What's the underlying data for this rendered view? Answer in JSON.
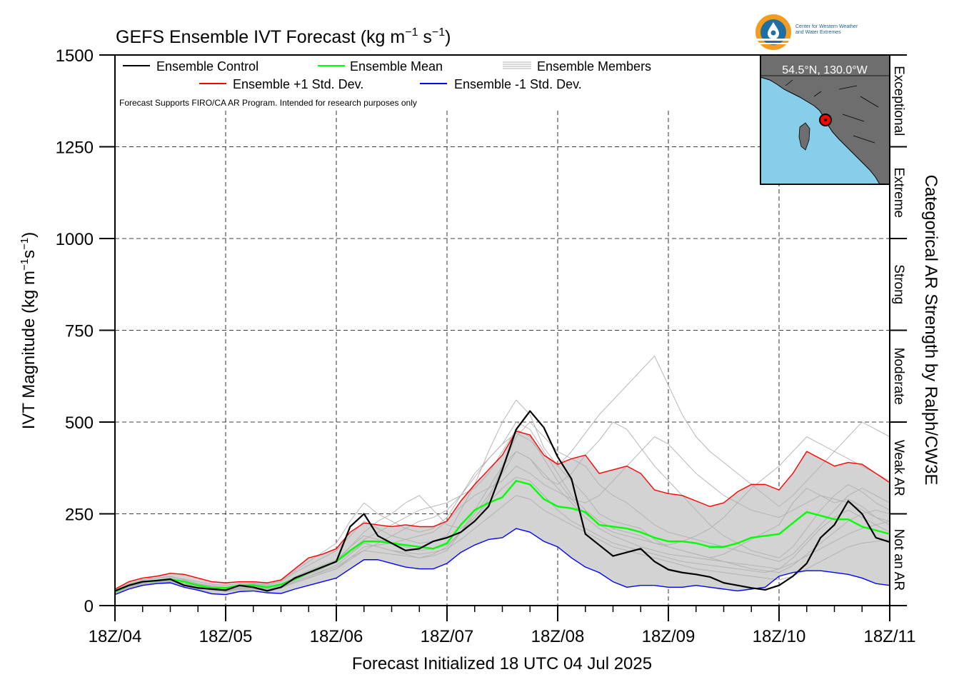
{
  "header": {
    "title": "GEFS Ensemble IVT Forecast (kg m",
    "title_sup1": "−1",
    "title_mid": " s",
    "title_sup2": "−1",
    "title_end": ")"
  },
  "logo": {
    "line1": "Center for Western Weather",
    "line2": "and Water Extremes",
    "colors": {
      "sun": "#f39c1f",
      "water": "#1f6fa5"
    }
  },
  "inset_map": {
    "location_label": "54.5°N, 130.0°W",
    "colors": {
      "ocean": "#87ceeb",
      "land": "#6e6e6e",
      "marker": "#ff0000"
    }
  },
  "disclaimer": "Forecast Supports FIRO/CA AR Program. Intended for research purposes only",
  "right_axis": {
    "title": "Categorical AR Strength by Ralph/CW3E",
    "categories": [
      {
        "label": "Not an AR",
        "range": [
          0,
          250
        ]
      },
      {
        "label": "Weak AR",
        "range": [
          250,
          500
        ]
      },
      {
        "label": "Moderate",
        "range": [
          500,
          750
        ]
      },
      {
        "label": "Strong",
        "range": [
          750,
          1000
        ]
      },
      {
        "label": "Extreme",
        "range": [
          1000,
          1250
        ]
      },
      {
        "label": "Exceptional",
        "range": [
          1250,
          1500
        ]
      }
    ]
  },
  "chart_data": {
    "type": "line",
    "title": "GEFS Ensemble IVT Forecast (kg m−1 s−1)",
    "xlabel": "Forecast Initialized 18 UTC 04 Jul 2025",
    "ylabel": "IVT Magnitude (kg m−1s−1)",
    "ylim": [
      0,
      1500
    ],
    "yticks": [
      0,
      250,
      500,
      750,
      1000,
      1250,
      1500
    ],
    "xlim": [
      0,
      168
    ],
    "x_unit": "forecast hour",
    "xticks": [
      {
        "value": 0,
        "label": "18Z/04"
      },
      {
        "value": 24,
        "label": "18Z/05"
      },
      {
        "value": 48,
        "label": "18Z/06"
      },
      {
        "value": 72,
        "label": "18Z/07"
      },
      {
        "value": 96,
        "label": "18Z/08"
      },
      {
        "value": 120,
        "label": "18Z/09"
      },
      {
        "value": 144,
        "label": "18Z/10"
      },
      {
        "value": 168,
        "label": "18Z/11"
      }
    ],
    "grid": true,
    "legend_position": "top-left",
    "legend": [
      {
        "label": "Ensemble Control",
        "color": "#000000"
      },
      {
        "label": "Ensemble Mean",
        "color": "#00ff00"
      },
      {
        "label": "Ensemble Members",
        "color": "#b0b0b0"
      },
      {
        "label": "Ensemble +1 Std. Dev.",
        "color": "#ff0000"
      },
      {
        "label": "Ensemble -1 Std. Dev.",
        "color": "#0000ff"
      }
    ],
    "x": [
      0,
      3,
      6,
      9,
      12,
      15,
      18,
      21,
      24,
      27,
      30,
      33,
      36,
      39,
      42,
      45,
      48,
      51,
      54,
      57,
      60,
      63,
      66,
      69,
      72,
      75,
      78,
      81,
      84,
      87,
      90,
      93,
      96,
      99,
      102,
      105,
      108,
      111,
      114,
      117,
      120,
      123,
      126,
      129,
      132,
      135,
      138,
      141,
      144,
      147,
      150,
      153,
      156,
      159,
      162,
      165,
      168
    ],
    "series": [
      {
        "name": "Ensemble Control",
        "color": "#000000",
        "values": [
          40,
          55,
          65,
          68,
          72,
          55,
          48,
          45,
          42,
          55,
          50,
          40,
          50,
          75,
          90,
          105,
          120,
          215,
          250,
          190,
          170,
          150,
          155,
          175,
          185,
          200,
          230,
          270,
          370,
          480,
          530,
          485,
          405,
          345,
          195,
          165,
          135,
          145,
          155,
          120,
          98,
          90,
          85,
          78,
          62,
          55,
          48,
          43,
          55,
          80,
          115,
          185,
          220,
          285,
          250,
          185,
          173
        ]
      },
      {
        "name": "Ensemble Mean",
        "color": "#00ff00",
        "values": [
          38,
          55,
          65,
          68,
          72,
          65,
          55,
          48,
          48,
          55,
          55,
          50,
          58,
          72,
          90,
          105,
          120,
          150,
          175,
          175,
          170,
          165,
          160,
          155,
          170,
          220,
          260,
          280,
          295,
          340,
          330,
          290,
          270,
          265,
          255,
          220,
          215,
          210,
          200,
          185,
          175,
          175,
          170,
          160,
          160,
          170,
          185,
          190,
          195,
          225,
          255,
          245,
          235,
          235,
          215,
          205,
          195
        ]
      },
      {
        "name": "Ensemble +1 Std. Dev.",
        "color": "#ff0000",
        "values": [
          45,
          65,
          75,
          80,
          88,
          85,
          75,
          65,
          62,
          65,
          65,
          62,
          70,
          100,
          130,
          140,
          155,
          200,
          225,
          220,
          215,
          220,
          215,
          215,
          230,
          285,
          330,
          370,
          410,
          475,
          465,
          410,
          385,
          400,
          410,
          360,
          370,
          380,
          360,
          315,
          305,
          300,
          285,
          270,
          280,
          310,
          330,
          330,
          315,
          360,
          420,
          400,
          380,
          390,
          385,
          360,
          335
        ]
      },
      {
        "name": "Ensemble -1 Std. Dev.",
        "color": "#0000ff",
        "values": [
          30,
          45,
          55,
          60,
          62,
          50,
          42,
          32,
          30,
          38,
          40,
          35,
          33,
          45,
          55,
          65,
          75,
          100,
          125,
          125,
          115,
          105,
          100,
          100,
          115,
          145,
          165,
          180,
          185,
          210,
          200,
          175,
          160,
          130,
          105,
          90,
          65,
          50,
          55,
          55,
          50,
          50,
          55,
          50,
          45,
          40,
          45,
          50,
          80,
          90,
          95,
          95,
          90,
          85,
          75,
          60,
          55
        ]
      }
    ],
    "ensemble_members": [
      {
        "name": "Ensemble Members",
        "values": [
          35,
          55,
          70,
          75,
          80,
          70,
          60,
          50,
          45,
          55,
          60,
          55,
          65,
          90,
          110,
          130,
          150,
          190,
          230,
          210,
          190,
          180,
          170,
          175,
          190,
          260,
          330,
          420,
          500,
          560,
          520,
          430,
          380,
          340,
          300,
          250,
          230,
          220,
          210,
          180,
          160,
          150,
          140,
          130,
          140,
          160,
          180,
          200,
          220,
          280,
          320,
          300,
          280,
          290,
          270,
          240,
          220
        ]
      },
      {
        "name": "Ensemble Members",
        "values": [
          40,
          50,
          60,
          65,
          70,
          60,
          55,
          45,
          40,
          50,
          55,
          45,
          55,
          70,
          85,
          100,
          120,
          160,
          200,
          230,
          250,
          280,
          300,
          260,
          220,
          210,
          240,
          290,
          380,
          460,
          500,
          460,
          420,
          400,
          380,
          330,
          300,
          280,
          250,
          220,
          200,
          190,
          180,
          170,
          160,
          150,
          140,
          130,
          120,
          140,
          180,
          220,
          260,
          300,
          320,
          300,
          280
        ]
      },
      {
        "name": "Ensemble Members",
        "values": [
          30,
          45,
          55,
          60,
          65,
          55,
          45,
          35,
          30,
          40,
          45,
          40,
          50,
          65,
          80,
          95,
          110,
          140,
          170,
          160,
          150,
          140,
          130,
          135,
          150,
          200,
          260,
          320,
          380,
          420,
          400,
          350,
          330,
          360,
          410,
          450,
          500,
          480,
          430,
          380,
          340,
          300,
          260,
          220,
          190,
          170,
          150,
          140,
          130,
          160,
          210,
          260,
          300,
          330,
          310,
          280,
          260
        ]
      },
      {
        "name": "Ensemble Members",
        "values": [
          45,
          60,
          70,
          75,
          78,
          72,
          65,
          58,
          55,
          60,
          62,
          58,
          68,
          95,
          120,
          145,
          170,
          230,
          280,
          250,
          230,
          210,
          200,
          210,
          240,
          300,
          360,
          400,
          440,
          500,
          480,
          420,
          360,
          300,
          260,
          230,
          210,
          200,
          190,
          170,
          160,
          150,
          140,
          130,
          120,
          110,
          100,
          95,
          90,
          110,
          140,
          170,
          200,
          230,
          250,
          260,
          250
        ]
      },
      {
        "name": "Ensemble Members",
        "values": [
          35,
          50,
          62,
          68,
          72,
          66,
          58,
          52,
          48,
          52,
          50,
          45,
          48,
          62,
          75,
          88,
          100,
          130,
          160,
          165,
          170,
          180,
          190,
          200,
          230,
          270,
          300,
          320,
          340,
          380,
          360,
          330,
          310,
          290,
          280,
          300,
          340,
          380,
          420,
          460,
          440,
          400,
          360,
          330,
          300,
          280,
          260,
          250,
          240,
          260,
          280,
          300,
          290,
          280,
          260,
          240,
          230
        ]
      },
      {
        "name": "Ensemble Members",
        "values": [
          38,
          52,
          60,
          64,
          68,
          60,
          52,
          46,
          42,
          48,
          50,
          46,
          52,
          70,
          88,
          102,
          118,
          150,
          180,
          200,
          220,
          240,
          260,
          270,
          280,
          300,
          320,
          360,
          420,
          480,
          460,
          400,
          340,
          290,
          250,
          220,
          200,
          190,
          180,
          170,
          165,
          175,
          190,
          210,
          240,
          280,
          320,
          350,
          380,
          420,
          460,
          440,
          420,
          400,
          380,
          360,
          340
        ]
      },
      {
        "name": "Ensemble Members",
        "values": [
          42,
          58,
          66,
          70,
          74,
          68,
          60,
          54,
          50,
          56,
          58,
          52,
          58,
          78,
          96,
          110,
          125,
          160,
          190,
          180,
          170,
          160,
          150,
          155,
          165,
          200,
          240,
          280,
          320,
          350,
          340,
          300,
          260,
          230,
          210,
          190,
          170,
          160,
          150,
          140,
          130,
          120,
          115,
          110,
          105,
          100,
          95,
          90,
          100,
          130,
          170,
          210,
          240,
          260,
          240,
          220,
          200
        ]
      },
      {
        "name": "Ensemble Members",
        "values": [
          36,
          50,
          58,
          62,
          66,
          58,
          50,
          44,
          40,
          46,
          48,
          44,
          50,
          66,
          80,
          92,
          105,
          130,
          150,
          170,
          190,
          210,
          230,
          240,
          260,
          300,
          350,
          400,
          440,
          470,
          450,
          410,
          380,
          420,
          470,
          520,
          560,
          600,
          640,
          680,
          600,
          520,
          460,
          420,
          390,
          360,
          330,
          300,
          270,
          300,
          340,
          380,
          420,
          460,
          500,
          480,
          460
        ]
      },
      {
        "name": "Ensemble Members",
        "values": [
          40,
          55,
          64,
          68,
          72,
          64,
          56,
          50,
          46,
          52,
          54,
          50,
          56,
          74,
          90,
          104,
          118,
          145,
          170,
          160,
          150,
          145,
          140,
          145,
          155,
          180,
          210,
          240,
          270,
          300,
          290,
          260,
          240,
          220,
          200,
          180,
          160,
          150,
          140,
          130,
          120,
          110,
          100,
          95,
          90,
          85,
          80,
          75,
          70,
          80,
          100,
          120,
          140,
          160,
          170,
          175,
          180
        ]
      },
      {
        "name": "Ensemble Members",
        "values": [
          33,
          48,
          56,
          60,
          64,
          56,
          48,
          42,
          38,
          44,
          46,
          42,
          48,
          62,
          76,
          88,
          100,
          125,
          150,
          145,
          140,
          135,
          130,
          140,
          160,
          200,
          250,
          300,
          360,
          420,
          400,
          360,
          320,
          280,
          240,
          210,
          190,
          175,
          160,
          150,
          140,
          135,
          130,
          125,
          120,
          115,
          110,
          105,
          100,
          115,
          135,
          155,
          175,
          195,
          210,
          220,
          230
        ]
      }
    ]
  }
}
